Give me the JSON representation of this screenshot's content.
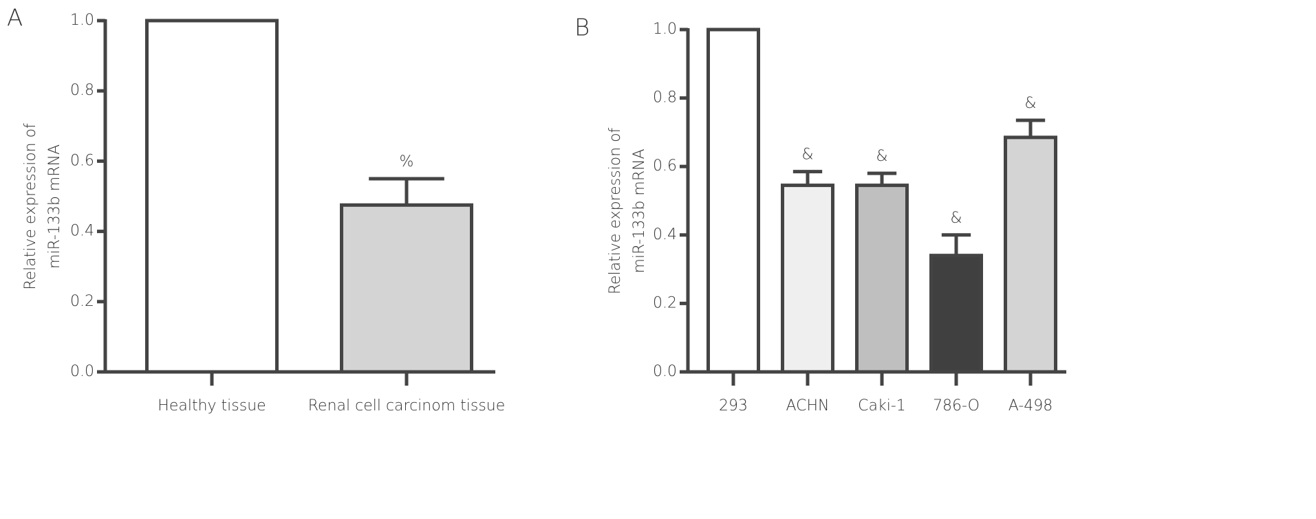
{
  "chart_data": [
    {
      "type": "bar",
      "panel_label": "A",
      "ylabel": [
        "Relative expression of",
        "miR-133b mRNA"
      ],
      "categories": [
        "Healthy tissue",
        "Renal cell carcinom tissue"
      ],
      "values": [
        1.0,
        0.475
      ],
      "errors": [
        null,
        0.075
      ],
      "annotations": [
        null,
        "%"
      ],
      "colors": [
        "#ffffff",
        "#d4d4d4"
      ],
      "ylim": [
        0,
        1.0
      ],
      "yticks": [
        {
          "value": 0,
          "label": "0.0"
        },
        {
          "value": 0.2,
          "label": "0.2"
        },
        {
          "value": 0.4,
          "label": "0.4"
        },
        {
          "value": 0.6,
          "label": "0.6"
        },
        {
          "value": 0.8,
          "label": "0.8"
        },
        {
          "value": 1.0,
          "label": "1.0"
        }
      ]
    },
    {
      "type": "bar",
      "panel_label": "B",
      "ylabel": [
        "Relative expression of",
        "miR-133b mRNA"
      ],
      "categories": [
        "293",
        "ACHN",
        "Caki-1",
        "786-O",
        "A-498"
      ],
      "values": [
        1.0,
        0.545,
        0.545,
        0.34,
        0.685
      ],
      "errors": [
        null,
        0.04,
        0.035,
        0.06,
        0.05
      ],
      "annotations": [
        null,
        "&",
        "&",
        "&",
        "&"
      ],
      "colors": [
        "#ffffff",
        "#efefef",
        "#bfbfbf",
        "#404040",
        "#d4d4d4"
      ],
      "ylim": [
        0,
        1.0
      ],
      "yticks": [
        {
          "value": 0,
          "label": "0.0"
        },
        {
          "value": 0.2,
          "label": "0.2"
        },
        {
          "value": 0.4,
          "label": "0.4"
        },
        {
          "value": 0.6,
          "label": "0.6"
        },
        {
          "value": 0.8,
          "label": "0.8"
        },
        {
          "value": 1.0,
          "label": "1.0"
        }
      ]
    }
  ]
}
